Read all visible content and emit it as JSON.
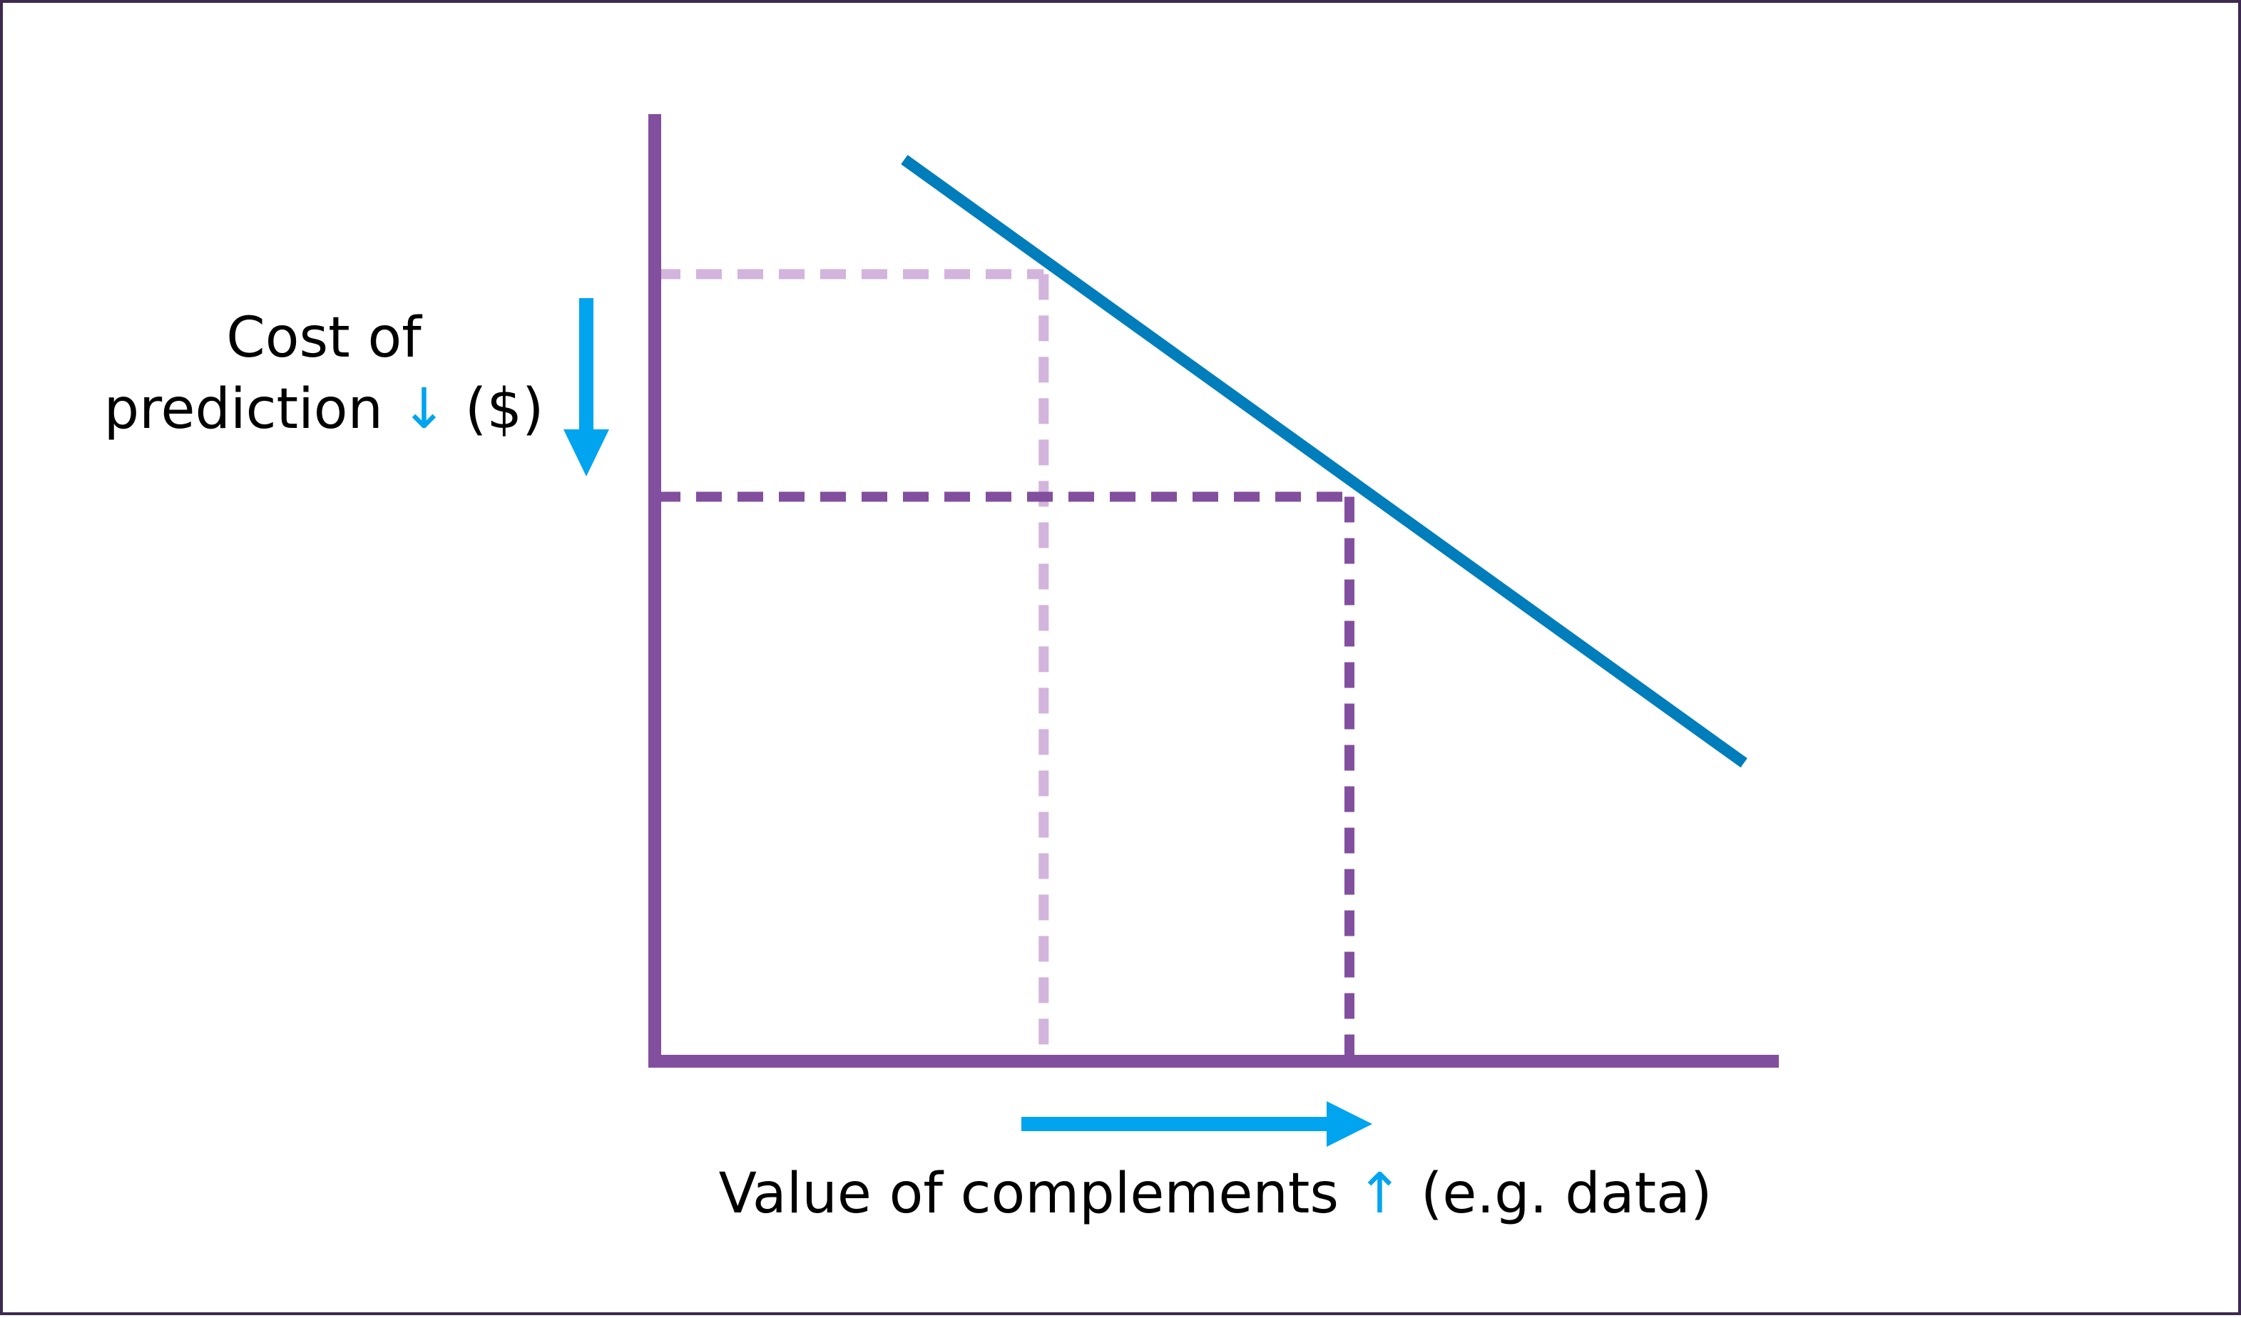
{
  "chart_data": {
    "type": "line",
    "title": "",
    "xlabel": {
      "text": "Value of complements",
      "arrow": "↑",
      "suffix": "(e.g. data)"
    },
    "ylabel": {
      "line1": "Cost of",
      "line2": "prediction",
      "arrow": "↓",
      "suffix": "($)"
    },
    "xlim": [
      0,
      100
    ],
    "ylim": [
      0,
      100
    ],
    "grid": false,
    "series": [
      {
        "name": "demand-line",
        "x": [
          22.2,
          96.9
        ],
        "y": [
          95.2,
          31.5
        ]
      }
    ],
    "reference_points": [
      {
        "name": "before",
        "x": 34.6,
        "y": 83.1
      },
      {
        "name": "after",
        "x": 61.8,
        "y": 59.6
      }
    ],
    "colors": {
      "axis": "#824f9e",
      "line": "#007dbb",
      "ref_before": "#d2b4dc",
      "ref_after": "#824f9e",
      "arrow": "#00a4ef"
    }
  }
}
